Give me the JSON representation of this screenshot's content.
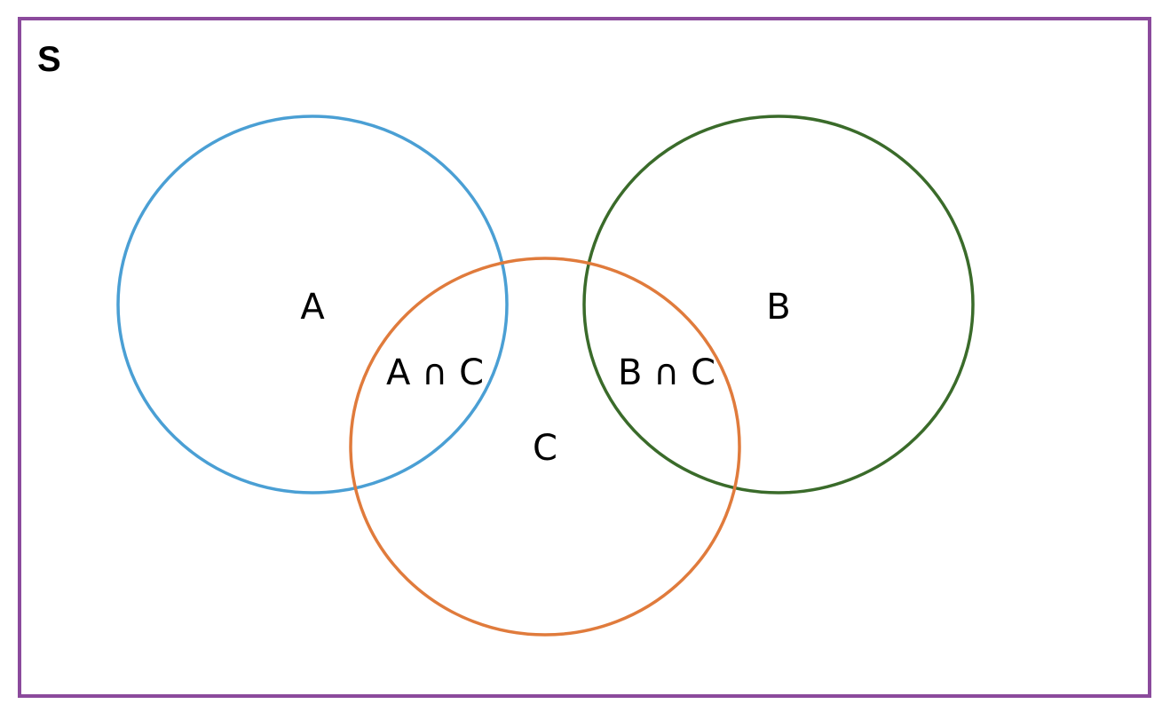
{
  "diagram": {
    "universe": {
      "label": "S",
      "stroke": "#8B4A9C"
    },
    "sets": [
      {
        "id": "A",
        "label": "A",
        "stroke": "#4A9FD4"
      },
      {
        "id": "B",
        "label": "B",
        "stroke": "#3A6B2A"
      },
      {
        "id": "C",
        "label": "C",
        "stroke": "#E07B3C"
      }
    ],
    "intersections": [
      {
        "id": "A-C",
        "label": "A ∩ C"
      },
      {
        "id": "B-C",
        "label": "B ∩ C"
      }
    ]
  }
}
